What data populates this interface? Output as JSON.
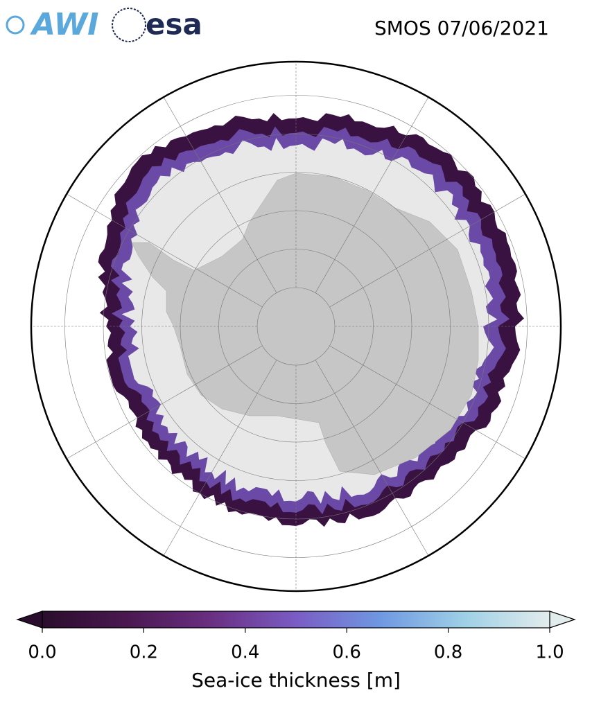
{
  "header": {
    "title": "SMOS 07/06/2021",
    "logos": [
      "AWI",
      "esa"
    ]
  },
  "colorbar": {
    "label": "Sea-ice thickness [m]",
    "lim": [
      0,
      1
    ],
    "ticks": [
      {
        "value": 0,
        "label": "0.0"
      },
      {
        "value": 0.2,
        "label": "0.2"
      },
      {
        "value": 0.4,
        "label": "0.4"
      },
      {
        "value": 0.6,
        "label": "0.6"
      },
      {
        "value": 0.8,
        "label": "0.8"
      },
      {
        "value": 1,
        "label": "1.0"
      }
    ],
    "colors": [
      "#2a0d2c",
      "#4a1850",
      "#6a2f82",
      "#7a5cc4",
      "#6f98e2",
      "#9fd0e6",
      "#e2ecec"
    ]
  }
}
